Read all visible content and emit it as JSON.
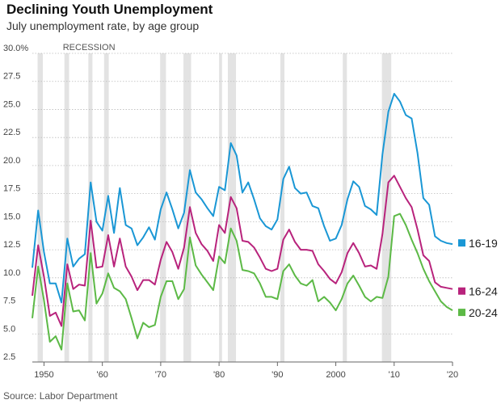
{
  "title": "Declining Youth Unemployment",
  "subtitle": "July unemployment rate, by age group",
  "source": "Source: Labor Department",
  "chart_data": {
    "type": "line",
    "title": "Declining Youth Unemployment",
    "subtitle": "July unemployment rate, by age group",
    "ylim": [
      2.5,
      30
    ],
    "xlim": [
      1948,
      2020
    ],
    "y_ticks": [
      30,
      27.5,
      25,
      22.5,
      20,
      17.5,
      15,
      12.5,
      10,
      7.5,
      5,
      2.5
    ],
    "y_tick_labels": [
      "30.0%",
      "27.5",
      "25.0",
      "22.5",
      "20.0",
      "17.5",
      "15.0",
      "12.5",
      "10.0",
      "7.5",
      "5.0",
      "2.5"
    ],
    "x_ticks": [
      1950,
      1960,
      1970,
      1980,
      1990,
      2000,
      2010,
      2020
    ],
    "x_tick_labels": [
      "1950",
      "'60",
      "'70",
      "'80",
      "'90",
      "2000",
      "'10",
      "'20"
    ],
    "grid": true,
    "legend_position": "right",
    "recession_label": "RECESSION",
    "recessions": [
      [
        1948.9,
        1949.8
      ],
      [
        1953.5,
        1954.3
      ],
      [
        1957.6,
        1958.3
      ],
      [
        1960.3,
        1961.1
      ],
      [
        1969.9,
        1970.9
      ],
      [
        1973.9,
        1975.2
      ],
      [
        1980.0,
        1980.5
      ],
      [
        1981.5,
        1982.9
      ],
      [
        1990.5,
        1991.2
      ],
      [
        2001.2,
        2001.9
      ],
      [
        2007.9,
        2009.5
      ]
    ],
    "x": [
      1948,
      1949,
      1950,
      1951,
      1952,
      1953,
      1954,
      1955,
      1956,
      1957,
      1958,
      1959,
      1960,
      1961,
      1962,
      1963,
      1964,
      1965,
      1966,
      1967,
      1968,
      1969,
      1970,
      1971,
      1972,
      1973,
      1974,
      1975,
      1976,
      1977,
      1978,
      1979,
      1980,
      1981,
      1982,
      1983,
      1984,
      1985,
      1986,
      1987,
      1988,
      1989,
      1990,
      1991,
      1992,
      1993,
      1994,
      1995,
      1996,
      1997,
      1998,
      1999,
      2000,
      2001,
      2002,
      2003,
      2004,
      2005,
      2006,
      2007,
      2008,
      2009,
      2010,
      2011,
      2012,
      2013,
      2014,
      2015,
      2016,
      2017,
      2018,
      2019,
      2020
    ],
    "series": [
      {
        "name": "16-19",
        "color": "#1a97d5",
        "values": [
          10.9,
          16.0,
          12.3,
          9.5,
          9.5,
          7.8,
          13.5,
          11.0,
          11.7,
          12.1,
          18.5,
          15.0,
          14.2,
          17.3,
          14.0,
          18.0,
          14.7,
          14.4,
          12.9,
          13.6,
          14.5,
          13.4,
          16.1,
          17.6,
          16.1,
          14.4,
          15.8,
          19.6,
          17.6,
          17.0,
          16.2,
          15.5,
          18.1,
          17.8,
          22.0,
          20.9,
          17.6,
          18.5,
          17.0,
          15.3,
          14.6,
          14.3,
          15.2,
          18.8,
          19.9,
          18.0,
          17.5,
          17.6,
          16.4,
          16.2,
          14.6,
          13.3,
          13.5,
          14.7,
          17.0,
          18.6,
          18.1,
          16.4,
          16.1,
          15.6,
          21.0,
          24.8,
          26.4,
          25.7,
          24.5,
          24.2,
          21.1,
          17.1,
          16.5,
          13.7,
          13.3,
          13.1,
          13.0
        ]
      },
      {
        "name": "16-24",
        "color": "#b8237c",
        "values": [
          8.4,
          12.9,
          10.1,
          6.6,
          6.9,
          5.7,
          11.2,
          9.0,
          9.4,
          9.3,
          15.1,
          10.9,
          11.0,
          13.8,
          11.0,
          13.5,
          11.0,
          10.1,
          8.9,
          9.8,
          9.8,
          9.4,
          11.6,
          13.2,
          12.3,
          10.8,
          12.7,
          16.3,
          14.0,
          13.0,
          12.4,
          11.5,
          14.7,
          14.0,
          17.2,
          16.2,
          13.3,
          13.2,
          12.7,
          11.8,
          10.8,
          10.6,
          10.8,
          13.4,
          14.3,
          13.2,
          12.5,
          12.5,
          12.4,
          11.2,
          10.6,
          9.9,
          9.5,
          10.5,
          12.2,
          13.1,
          12.2,
          11.0,
          11.1,
          10.8,
          13.9,
          18.5,
          19.1,
          18.1,
          17.1,
          16.3,
          14.3,
          12.0,
          11.5,
          9.6,
          9.2,
          9.1,
          9.0
        ]
      },
      {
        "name": "20-24",
        "color": "#5cb946",
        "values": [
          6.4,
          11.0,
          8.0,
          4.3,
          4.8,
          3.6,
          9.5,
          7.0,
          7.1,
          6.2,
          12.2,
          7.7,
          8.6,
          10.4,
          9.1,
          8.8,
          8.1,
          6.4,
          4.6,
          6.0,
          5.6,
          5.8,
          8.3,
          9.7,
          9.7,
          8.1,
          9.0,
          13.6,
          11.1,
          10.3,
          9.6,
          8.9,
          11.9,
          11.3,
          14.4,
          13.3,
          10.7,
          10.6,
          10.4,
          9.5,
          8.3,
          8.3,
          8.1,
          10.6,
          11.2,
          10.2,
          9.5,
          9.3,
          9.8,
          7.9,
          8.3,
          7.8,
          7.1,
          8.1,
          9.5,
          10.2,
          9.3,
          8.3,
          7.9,
          8.3,
          8.2,
          10.1,
          15.5,
          15.7,
          14.7,
          13.4,
          12.2,
          10.8,
          9.7,
          8.8,
          7.9,
          7.4,
          7.1
        ]
      }
    ]
  }
}
